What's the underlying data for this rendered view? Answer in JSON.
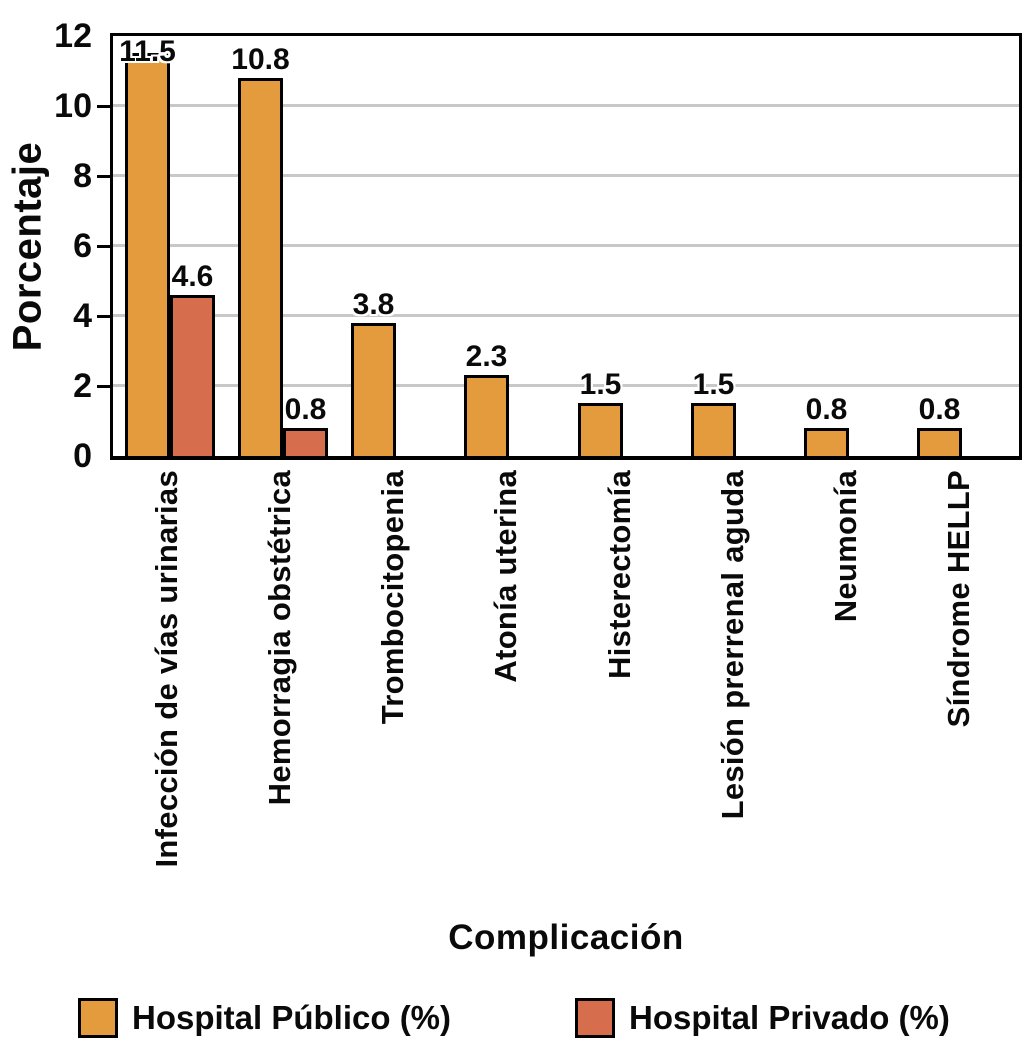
{
  "chart_data": {
    "type": "bar",
    "title": "",
    "xlabel": "Complicación",
    "ylabel": "Porcentaje",
    "ylim": [
      0,
      12
    ],
    "yticks": [
      0,
      2,
      4,
      6,
      8,
      10,
      12
    ],
    "grid": "horizontal gridlines at even ticks (2,4,6,8,10), light gray",
    "legend_position": "bottom",
    "bar_value_labels_shown": true,
    "categories": [
      "Infección de vías urinarias",
      "Hemorragia obstétrica",
      "Trombocitopenia",
      "Atonía uterina",
      "Histerectomía",
      "Lesión prerrenal aguda",
      "Neumonía",
      "Síndrome HELLP"
    ],
    "series": [
      {
        "name": "Hospital Público (%)",
        "color": "#E49B3D",
        "values": [
          11.5,
          10.8,
          3.8,
          2.3,
          1.5,
          1.5,
          0.8,
          0.8
        ]
      },
      {
        "name": "Hospital Privado (%)",
        "color": "#D66E4E",
        "values": [
          4.6,
          0.8,
          0,
          0,
          0,
          0,
          0,
          0
        ]
      }
    ]
  },
  "colors": {
    "axis_and_text": "#0a0a0a",
    "gridline": "#c8c8c8",
    "background": "#ffffff",
    "bar_outline": "#000000"
  }
}
